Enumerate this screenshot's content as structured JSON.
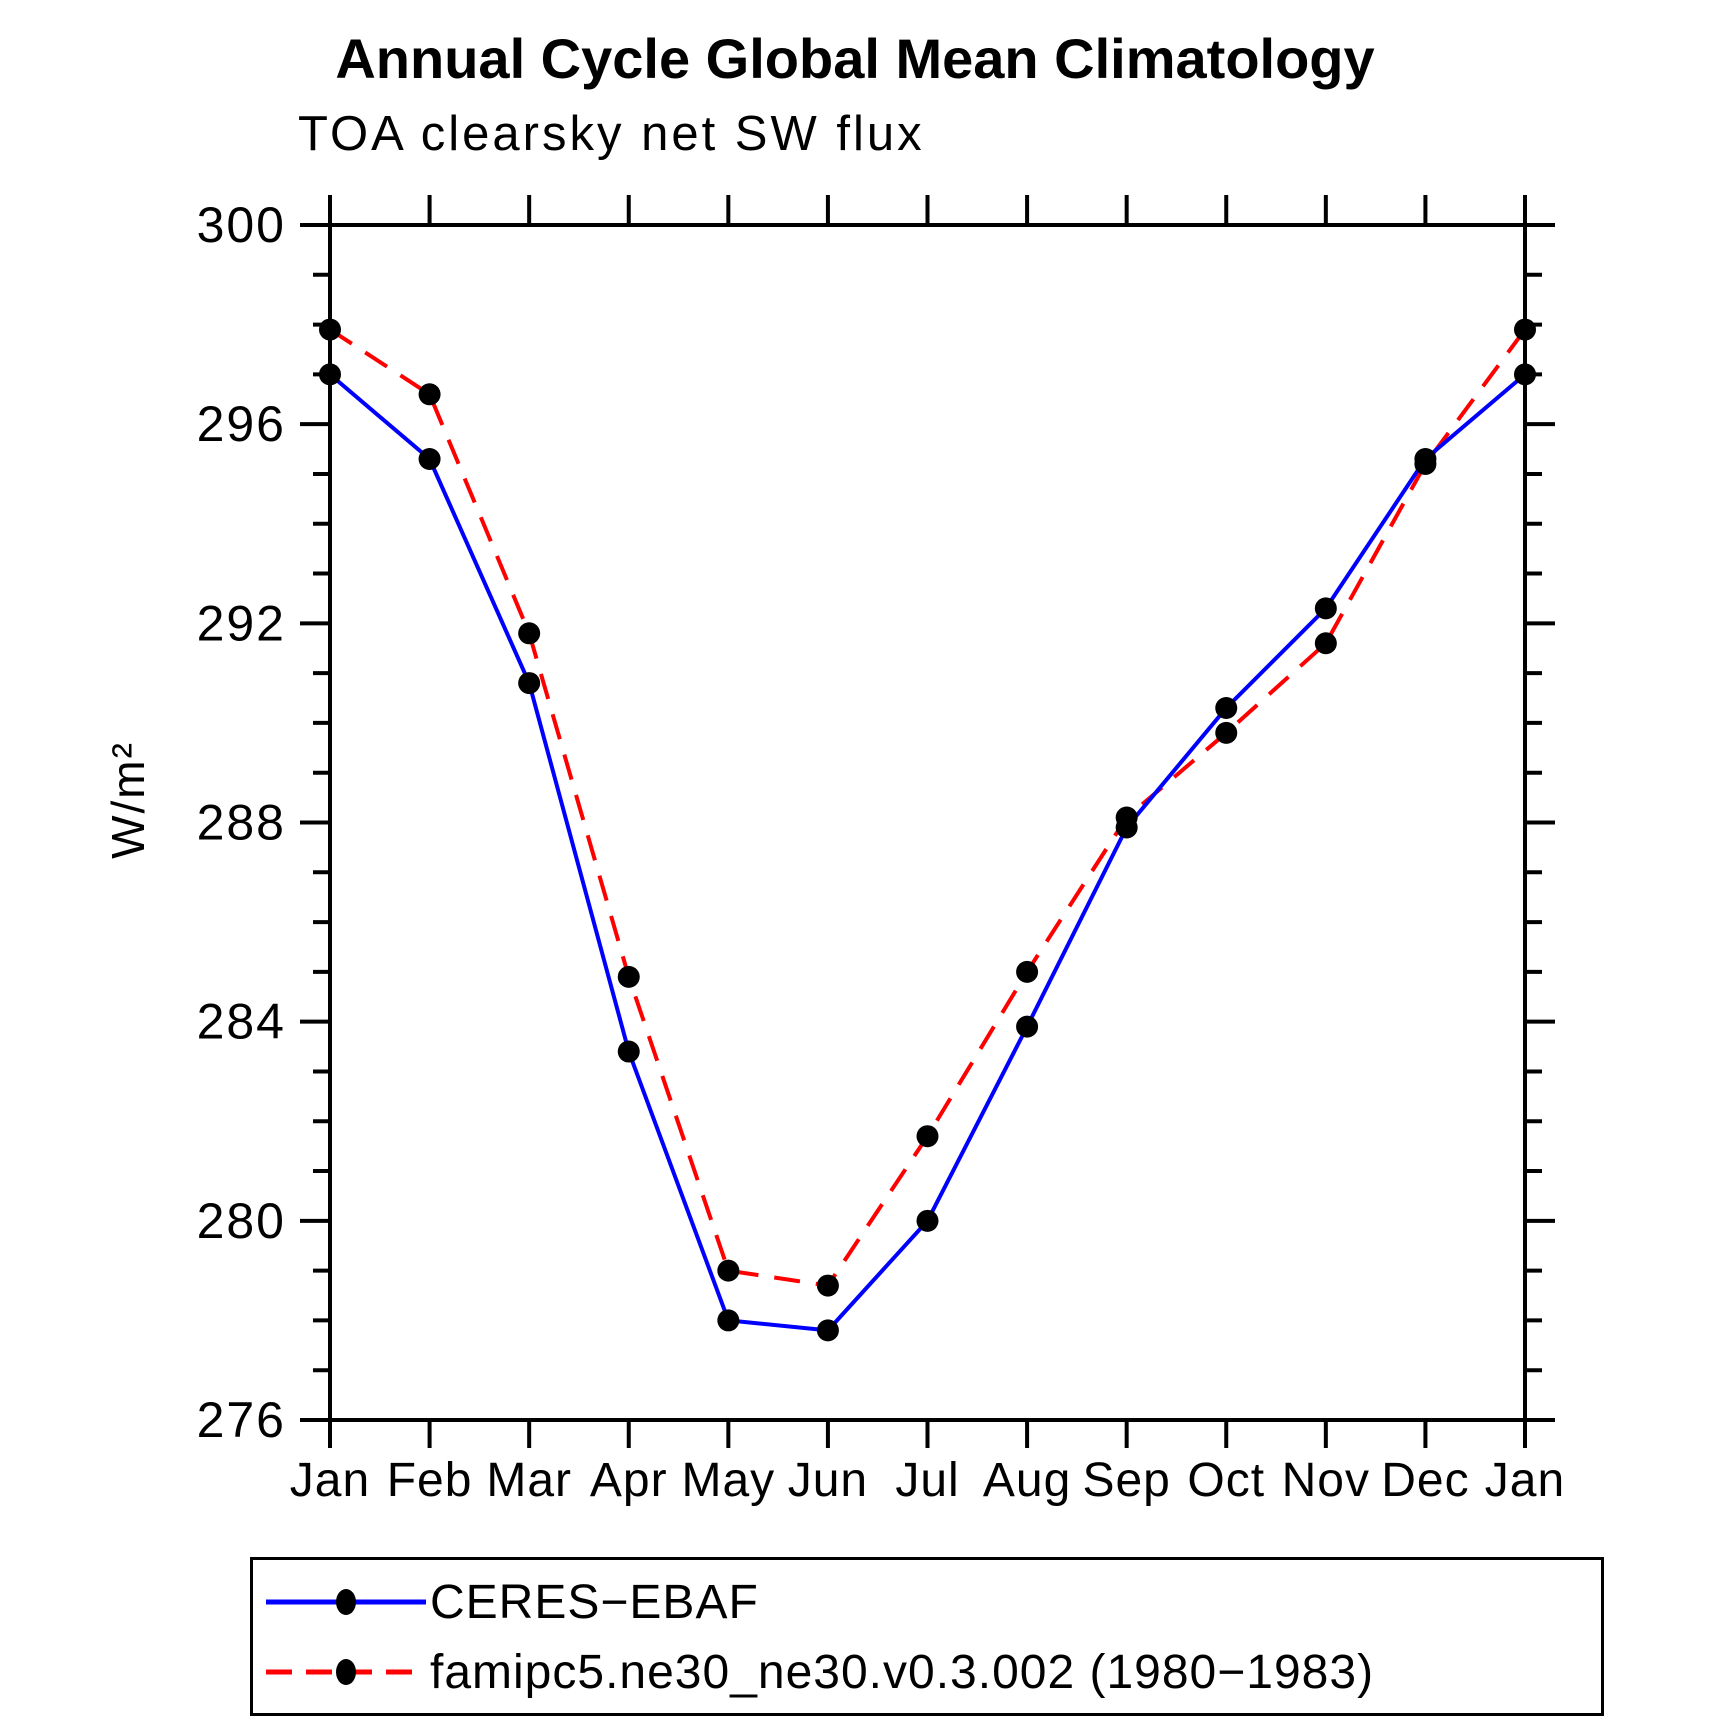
{
  "chart_data": {
    "type": "line",
    "title": "Annual Cycle Global Mean Climatology",
    "subtitle": "TOA clearsky net SW flux",
    "ylabel": "W/m²",
    "xlabel": "",
    "categories": [
      "Jan",
      "Feb",
      "Mar",
      "Apr",
      "May",
      "Jun",
      "Jul",
      "Aug",
      "Sep",
      "Oct",
      "Nov",
      "Dec",
      "Jan"
    ],
    "ylim": [
      276,
      300
    ],
    "yticks_major": [
      276,
      280,
      284,
      288,
      292,
      296,
      300
    ],
    "ytick_minor_step": 1,
    "grid": false,
    "frame": "box-outward-ticks",
    "legend_position": "bottom-left-box",
    "marker_color": "#000000",
    "axis_color": "#000000",
    "series": [
      {
        "name": "CERES−EBAF",
        "color": "#0000ff",
        "style": "solid",
        "marker": "filled-circle",
        "values": [
          297.0,
          295.3,
          290.8,
          283.4,
          278.0,
          277.8,
          280.0,
          283.9,
          287.9,
          290.3,
          292.3,
          295.3,
          297.0
        ]
      },
      {
        "name": "famipc5.ne30_ne30.v0.3.002 (1980−1983)",
        "color": "#ff0000",
        "style": "dashed",
        "marker": "filled-circle",
        "values": [
          297.9,
          296.6,
          291.8,
          284.9,
          279.0,
          278.7,
          281.7,
          285.0,
          288.1,
          289.8,
          291.6,
          295.2,
          297.9
        ]
      }
    ]
  }
}
